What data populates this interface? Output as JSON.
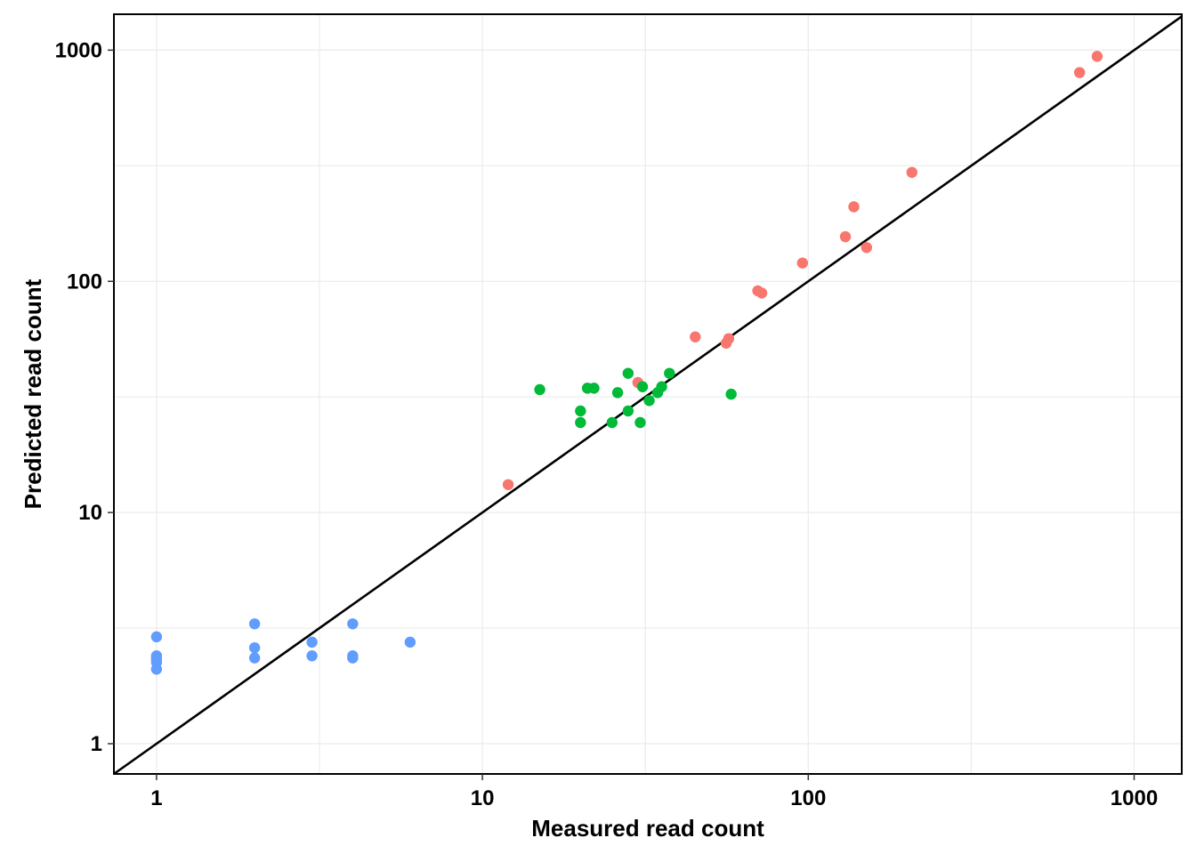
{
  "chart_data": {
    "type": "scatter",
    "title": "",
    "xlabel": "Measured read count",
    "ylabel": "Predicted read count",
    "x_scale": "log10",
    "y_scale": "log10",
    "xlim": [
      0.74,
      1400
    ],
    "ylim": [
      0.74,
      1430
    ],
    "x_ticks": [
      1,
      10,
      100,
      1000
    ],
    "y_ticks": [
      1,
      10,
      100,
      1000
    ],
    "x_tick_labels": [
      "1",
      "10",
      "100",
      "1000"
    ],
    "y_tick_labels": [
      "1",
      "10",
      "100",
      "1000"
    ],
    "grid": true,
    "legend": "none",
    "reference_line": {
      "slope": 1,
      "intercept": 0,
      "color": "#000000"
    },
    "series": [
      {
        "color": "#F8766D",
        "points": [
          [
            12,
            13.2
          ],
          [
            30,
            36.5
          ],
          [
            45,
            57.5
          ],
          [
            56,
            54
          ],
          [
            57,
            56.5
          ],
          [
            70,
            91
          ],
          [
            72,
            89
          ],
          [
            96,
            120
          ],
          [
            130,
            156
          ],
          [
            138,
            210
          ],
          [
            151,
            140
          ],
          [
            208,
            296
          ],
          [
            680,
            800
          ],
          [
            770,
            940
          ]
        ]
      },
      {
        "color": "#00BA38",
        "points": [
          [
            15,
            34
          ],
          [
            20,
            27.5
          ],
          [
            20,
            24.5
          ],
          [
            21,
            34.5
          ],
          [
            22,
            34.5
          ],
          [
            25,
            24.5
          ],
          [
            26,
            33
          ],
          [
            28,
            27.5
          ],
          [
            28,
            40
          ],
          [
            30.5,
            24.5
          ],
          [
            31,
            35
          ],
          [
            32.5,
            30.5
          ],
          [
            34.5,
            33
          ],
          [
            35.5,
            35
          ],
          [
            37.5,
            40
          ],
          [
            58,
            32.5
          ]
        ]
      },
      {
        "color": "#619CFF",
        "points": [
          [
            1,
            2.9
          ],
          [
            1,
            2.4
          ],
          [
            1,
            2.35
          ],
          [
            1,
            2.3
          ],
          [
            1,
            2.25
          ],
          [
            1,
            2.1
          ],
          [
            2,
            3.3
          ],
          [
            2,
            2.6
          ],
          [
            2,
            2.35
          ],
          [
            3,
            2.75
          ],
          [
            3,
            2.4
          ],
          [
            4,
            3.3
          ],
          [
            4,
            2.4
          ],
          [
            4,
            2.35
          ],
          [
            6,
            2.75
          ]
        ]
      }
    ]
  }
}
